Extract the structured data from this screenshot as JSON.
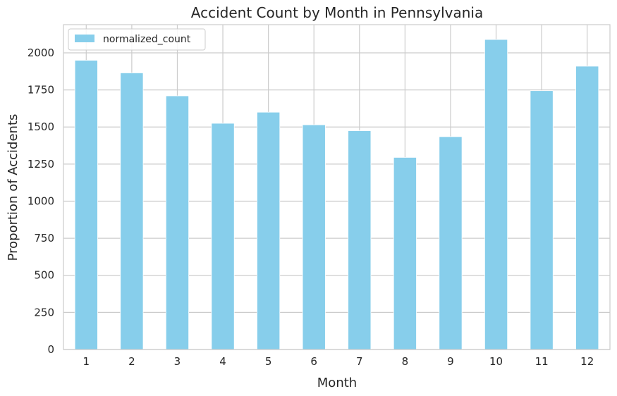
{
  "chart_data": {
    "type": "bar",
    "title": "Accident Count by Month in Pennsylvania",
    "xlabel": "Month",
    "ylabel": "Proportion of Accidents",
    "categories": [
      "1",
      "2",
      "3",
      "4",
      "5",
      "6",
      "7",
      "8",
      "9",
      "10",
      "11",
      "12"
    ],
    "series": [
      {
        "name": "normalized_count",
        "values": [
          1950,
          1865,
          1710,
          1525,
          1600,
          1515,
          1475,
          1295,
          1435,
          2090,
          1745,
          1910
        ],
        "color": "#87ceeb"
      }
    ],
    "ylim": [
      0,
      2190
    ],
    "yticks": [
      0,
      250,
      500,
      750,
      1000,
      1250,
      1500,
      1750,
      2000
    ],
    "grid": true,
    "legend_position": "top-left"
  }
}
